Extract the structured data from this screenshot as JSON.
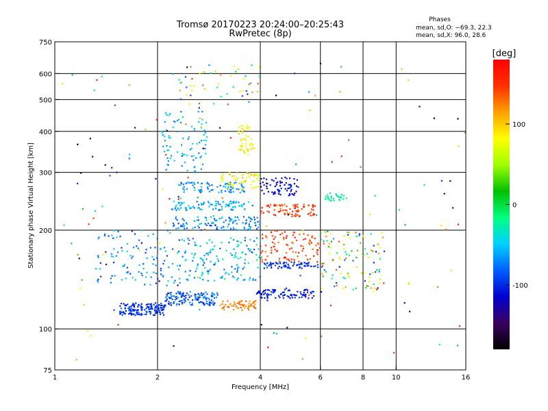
{
  "chart_data": {
    "type": "scatter",
    "title": "Tromsø 20170223 20:24:00–20:25:43",
    "subtitle": "RwPretec (8p)",
    "xlabel": "Frequency [MHz]",
    "ylabel": "Stationary phase Virtual Height [km]",
    "x_scale": "log",
    "y_scale": "log",
    "xlim": [
      1,
      16
    ],
    "ylim": [
      75,
      750
    ],
    "x_ticks": [
      1,
      2,
      4,
      6,
      8,
      10,
      16
    ],
    "y_ticks": [
      75,
      100,
      200,
      300,
      400,
      500,
      600,
      750
    ],
    "grid": true,
    "phase_note": {
      "title": "Phases",
      "line1": "mean, sd,O: −69.3, 22.3",
      "line2": "mean, sd,X:  96.0, 28.6"
    },
    "colorbar": {
      "label": "[deg]",
      "ticks": [
        100,
        0,
        -100
      ],
      "range": [
        -180,
        180
      ],
      "colors": [
        "#000000",
        "#3a0060",
        "#0000d0",
        "#0060ff",
        "#00d0ff",
        "#00ff80",
        "#00c000",
        "#a0ff00",
        "#ffff00",
        "#ffa000",
        "#ff3000",
        "#ff0000"
      ]
    },
    "series": [
      {
        "f_range": [
          1.55,
          2.1
        ],
        "h_range": [
          110,
          120
        ],
        "phase": [
          -115,
          -80
        ],
        "n": 160
      },
      {
        "f_range": [
          2.1,
          3.0
        ],
        "h_range": [
          118,
          130
        ],
        "phase": [
          -110,
          -60
        ],
        "n": 140
      },
      {
        "f_range": [
          3.05,
          3.9
        ],
        "h_range": [
          114,
          122
        ],
        "phase": [
          110,
          140
        ],
        "n": 60
      },
      {
        "f_range": [
          3.9,
          5.8
        ],
        "h_range": [
          124,
          132
        ],
        "phase": [
          -115,
          -95
        ],
        "n": 90
      },
      {
        "f_range": [
          4.1,
          5.9
        ],
        "h_range": [
          153,
          160
        ],
        "phase": [
          -110,
          -90
        ],
        "n": 70
      },
      {
        "f_range": [
          2.2,
          4.0
        ],
        "h_range": [
          200,
          220
        ],
        "phase": [
          -100,
          -40
        ],
        "n": 120
      },
      {
        "f_range": [
          2.2,
          3.8
        ],
        "h_range": [
          230,
          245
        ],
        "phase": [
          -80,
          -40
        ],
        "n": 90
      },
      {
        "f_range": [
          2.3,
          3.6
        ],
        "h_range": [
          260,
          280
        ],
        "phase": [
          -90,
          -50
        ],
        "n": 80
      },
      {
        "f_range": [
          3.0,
          4.0
        ],
        "h_range": [
          265,
          300
        ],
        "phase": [
          60,
          110
        ],
        "n": 60
      },
      {
        "f_range": [
          4.0,
          5.8
        ],
        "h_range": [
          220,
          240
        ],
        "phase": [
          130,
          170
        ],
        "n": 80
      },
      {
        "f_range": [
          4.0,
          5.2
        ],
        "h_range": [
          255,
          290
        ],
        "phase": [
          -130,
          -100
        ],
        "n": 70
      },
      {
        "f_range": [
          3.45,
          3.85
        ],
        "h_range": [
          340,
          420
        ],
        "phase": [
          70,
          100
        ],
        "n": 50
      },
      {
        "f_range": [
          2.05,
          2.8
        ],
        "h_range": [
          300,
          460
        ],
        "phase": [
          -80,
          -40
        ],
        "n": 90
      },
      {
        "f_range": [
          1.3,
          2.4
        ],
        "h_range": [
          135,
          200
        ],
        "phase": [
          -100,
          -40
        ],
        "n": 120
      },
      {
        "f_range": [
          2.4,
          4.0
        ],
        "h_range": [
          140,
          190
        ],
        "phase": [
          -90,
          -20
        ],
        "n": 150
      },
      {
        "f_range": [
          4.0,
          6.0
        ],
        "h_range": [
          160,
          200
        ],
        "phase": [
          120,
          170
        ],
        "n": 100
      },
      {
        "f_range": [
          6.0,
          9.2
        ],
        "h_range": [
          130,
          200
        ],
        "phase": [
          -110,
          150
        ],
        "n": 110
      },
      {
        "f_range": [
          6.2,
          7.2
        ],
        "h_range": [
          245,
          260
        ],
        "phase": [
          -40,
          -10
        ],
        "n": 30
      },
      {
        "f_range": [
          2.3,
          4.0
        ],
        "h_range": [
          480,
          650
        ],
        "phase": [
          -100,
          150
        ],
        "n": 50
      },
      {
        "f_range": [
          1.05,
          16
        ],
        "h_range": [
          80,
          650
        ],
        "phase": [
          -180,
          180
        ],
        "n": 140
      }
    ]
  }
}
